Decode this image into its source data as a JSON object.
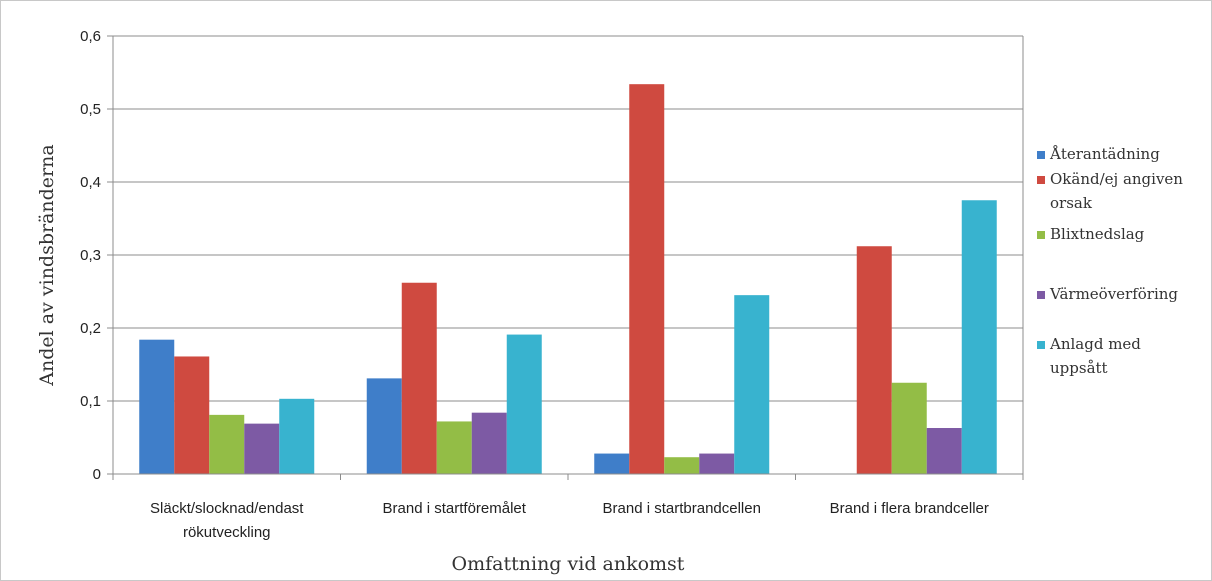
{
  "chart_data": {
    "type": "bar",
    "categories": [
      [
        "Släckt/slocknad/endast",
        "rökutveckling"
      ],
      [
        "Brand i startföremålet"
      ],
      [
        "Brand i startbrandcellen"
      ],
      [
        "Brand i flera brandceller"
      ]
    ],
    "series": [
      {
        "name": [
          "Återantädning"
        ],
        "color": "#3f7ec9",
        "values": [
          0.184,
          0.131,
          0.028,
          0
        ]
      },
      {
        "name": [
          "Okänd/ej angiven",
          "orsak"
        ],
        "color": "#cf4a40",
        "values": [
          0.161,
          0.262,
          0.534,
          0.312
        ]
      },
      {
        "name": [
          "Blixtnedslag"
        ],
        "color": "#93bd46",
        "values": [
          0.081,
          0.072,
          0.023,
          0.125
        ]
      },
      {
        "name": [
          "Värmeöverföring"
        ],
        "color": "#7d5aa4",
        "values": [
          0.069,
          0.084,
          0.028,
          0.063
        ]
      },
      {
        "name": [
          "Anlagd med",
          "uppsått"
        ],
        "color": "#38b3cf",
        "values": [
          0.103,
          0.191,
          0.245,
          0.375
        ]
      }
    ],
    "xlabel": "Omfattning vid ankomst",
    "ylabel": "Andel av vindsbränderna",
    "ylim": [
      0,
      0.6
    ],
    "yticks": [
      0,
      0.1,
      0.2,
      0.3,
      0.4,
      0.5,
      0.6
    ],
    "ytick_labels": [
      "0",
      "0,1",
      "0,2",
      "0,3",
      "0,4",
      "0,5",
      "0,6"
    ],
    "grid": true,
    "legend_position": "right"
  }
}
